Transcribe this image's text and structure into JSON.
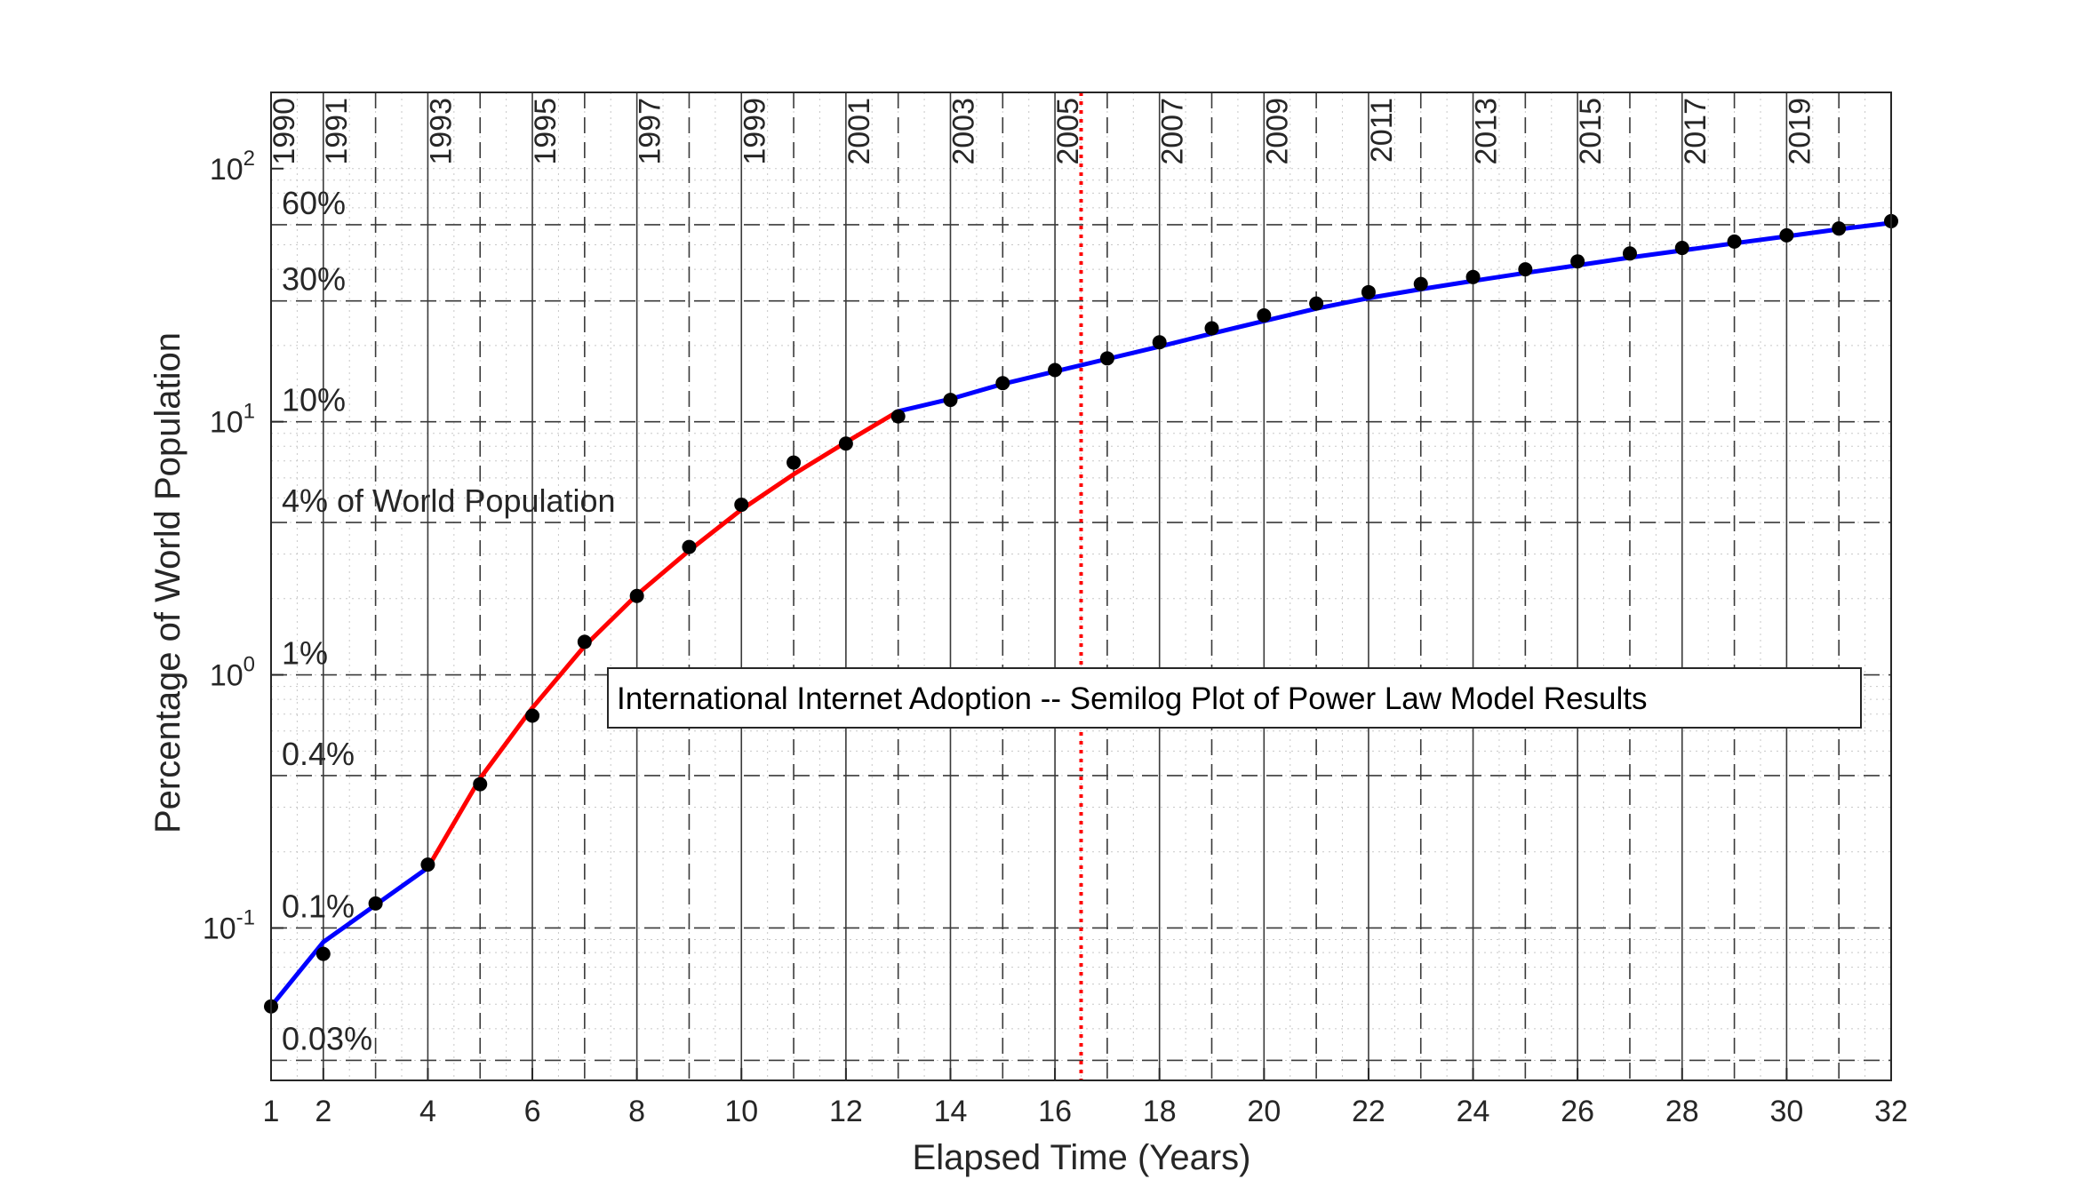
{
  "chart_data": {
    "type": "line",
    "title": "International Internet Adoption -- Semilog Plot of Power Law Model Results",
    "xlabel": "Elapsed Time (Years)",
    "ylabel": "Percentage of World Population",
    "xlim": [
      1,
      32
    ],
    "ylim": [
      0.025,
      200
    ],
    "yscale": "log",
    "grid": true,
    "x_ticks": [
      1,
      2,
      4,
      6,
      8,
      10,
      12,
      14,
      16,
      18,
      20,
      22,
      24,
      26,
      28,
      30,
      32
    ],
    "y_ticks": [
      {
        "value": 0.1,
        "base": "10",
        "exp": "-1"
      },
      {
        "value": 1,
        "base": "10",
        "exp": "0"
      },
      {
        "value": 10,
        "base": "10",
        "exp": "1"
      },
      {
        "value": 100,
        "base": "10",
        "exp": "2"
      }
    ],
    "observed": {
      "x": [
        1,
        2,
        3,
        4,
        5,
        6,
        7,
        8,
        9,
        10,
        11,
        12,
        13,
        14,
        15,
        16,
        17,
        18,
        19,
        20,
        21,
        22,
        23,
        24,
        25,
        26,
        27,
        28,
        29,
        30,
        31,
        32
      ],
      "y": [
        0.049,
        0.079,
        0.125,
        0.178,
        0.37,
        0.69,
        1.35,
        2.05,
        3.2,
        4.7,
        6.9,
        8.2,
        10.5,
        12.2,
        14.2,
        16.0,
        17.8,
        20.6,
        23.4,
        26.3,
        29.3,
        32.5,
        35.0,
        37.3,
        40.0,
        43.0,
        46.2,
        48.6,
        51.5,
        54.5,
        58.0,
        62.0
      ],
      "color": "#000000"
    },
    "model_segments": [
      {
        "color": "#0000ff",
        "x": [
          1,
          2,
          4
        ],
        "y": [
          0.049,
          0.088,
          0.173
        ]
      },
      {
        "color": "#ff0000",
        "x": [
          4,
          5,
          6,
          7,
          8,
          9,
          10,
          11,
          12,
          13
        ],
        "y": [
          0.173,
          0.39,
          0.74,
          1.3,
          2.07,
          3.1,
          4.5,
          6.2,
          8.3,
          11.0
        ]
      },
      {
        "color": "#0000ff",
        "x": [
          13,
          14,
          15,
          16,
          17,
          18,
          19,
          20,
          21,
          22,
          23,
          24,
          25,
          26,
          27,
          28,
          29,
          30,
          31,
          32
        ],
        "y": [
          11.0,
          12.3,
          14.1,
          15.8,
          17.7,
          19.8,
          22.3,
          25.0,
          28.0,
          30.8,
          33.4,
          36.0,
          38.7,
          41.5,
          44.5,
          47.5,
          50.7,
          54.0,
          57.6,
          61.0
        ]
      }
    ],
    "reference_line": {
      "x": 16.5,
      "color": "#ff0000",
      "style": "dotted"
    },
    "year_lines": {
      "solid_x": [
        2,
        4,
        6,
        8,
        10,
        12,
        14,
        16,
        18,
        20,
        22,
        24,
        26,
        28,
        30,
        32
      ],
      "dashed_x": [
        3,
        5,
        7,
        9,
        11,
        13,
        15,
        17,
        19,
        21,
        23,
        25,
        27,
        29,
        31
      ]
    },
    "year_labels": [
      {
        "x": 1,
        "label": "1990"
      },
      {
        "x": 2,
        "label": "1991"
      },
      {
        "x": 4,
        "label": "1993"
      },
      {
        "x": 6,
        "label": "1995"
      },
      {
        "x": 8,
        "label": "1997"
      },
      {
        "x": 10,
        "label": "1999"
      },
      {
        "x": 12,
        "label": "2001"
      },
      {
        "x": 14,
        "label": "2003"
      },
      {
        "x": 16,
        "label": "2005"
      },
      {
        "x": 18,
        "label": "2007"
      },
      {
        "x": 20,
        "label": "2009"
      },
      {
        "x": 22,
        "label": "2011"
      },
      {
        "x": 24,
        "label": "2013"
      },
      {
        "x": 26,
        "label": "2015"
      },
      {
        "x": 28,
        "label": "2017"
      },
      {
        "x": 30,
        "label": "2019"
      }
    ],
    "percent_levels": [
      {
        "value": 60,
        "label": "60%"
      },
      {
        "value": 30,
        "label": "30%"
      },
      {
        "value": 10,
        "label": "10%"
      },
      {
        "value": 4,
        "label": "4% of World Population"
      },
      {
        "value": 1,
        "label": "1%"
      },
      {
        "value": 0.4,
        "label": "0.4%"
      },
      {
        "value": 0.1,
        "label": "0.1%"
      },
      {
        "value": 0.03,
        "label": "0.03%"
      }
    ]
  }
}
